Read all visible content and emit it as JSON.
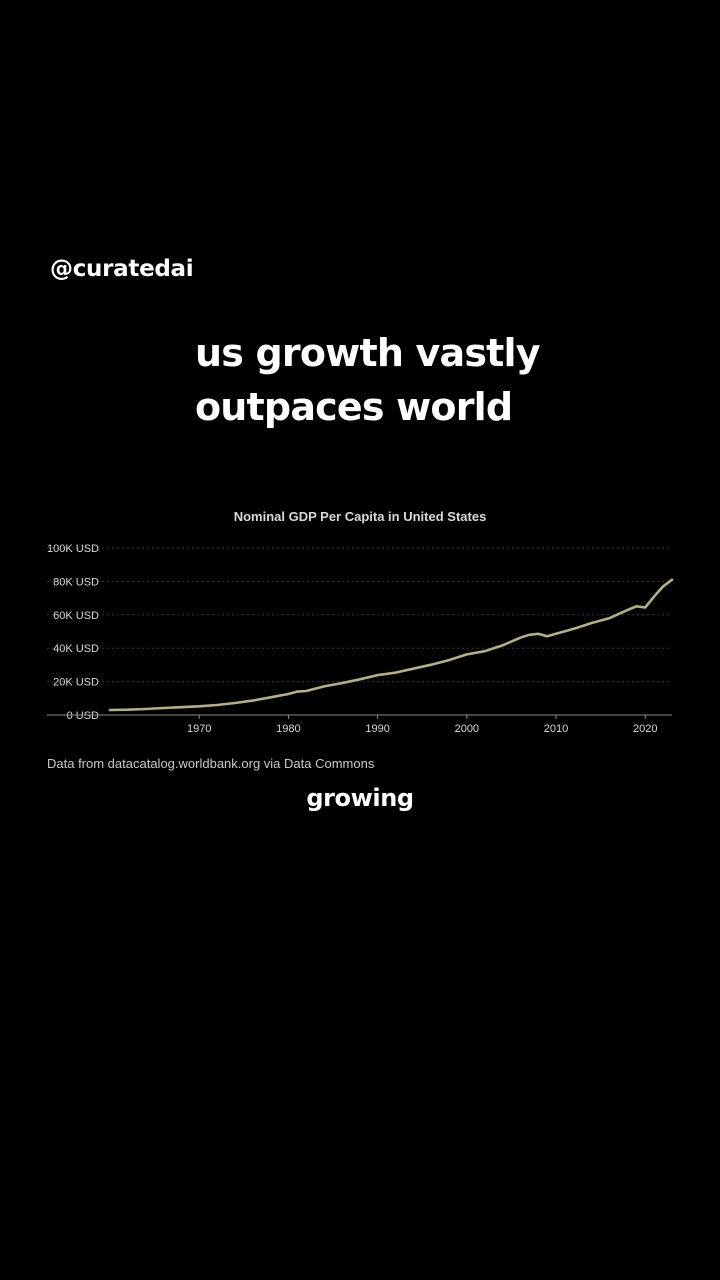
{
  "handle": "@curatedai",
  "headline": {
    "line1": "us growth vastly",
    "line2": "outpaces world"
  },
  "source_note": "Data from datacatalog.worldbank.org via Data Commons",
  "caption": "growing",
  "colors": {
    "background": "#000000",
    "line": "#b3b088",
    "text": "#ffffff",
    "axis_text": "#d8d8d8"
  },
  "chart_data": {
    "type": "line",
    "title": "Nominal GDP Per Capita in United States",
    "xlabel": "",
    "ylabel": "",
    "xlim": [
      1960,
      2023
    ],
    "ylim": [
      0,
      100000
    ],
    "x_ticks": [
      1970,
      1980,
      1990,
      2000,
      2010,
      2020
    ],
    "y_ticks": [
      0,
      20000,
      40000,
      60000,
      80000,
      100000
    ],
    "y_tick_labels": [
      "0 USD",
      "20K USD",
      "40K USD",
      "60K USD",
      "80K USD",
      "100K USD"
    ],
    "grid": "horizontal-dotted",
    "series": [
      {
        "name": "",
        "x": [
          1960,
          1962,
          1964,
          1966,
          1968,
          1970,
          1972,
          1974,
          1976,
          1978,
          1980,
          1981,
          1982,
          1984,
          1986,
          1988,
          1990,
          1992,
          1994,
          1996,
          1998,
          2000,
          2002,
          2004,
          2006,
          2007,
          2008,
          2009,
          2010,
          2012,
          2014,
          2016,
          2018,
          2019,
          2020,
          2021,
          2022,
          2023
        ],
        "y": [
          3000,
          3200,
          3600,
          4200,
          4700,
          5200,
          6000,
          7200,
          8600,
          10600,
          12600,
          14000,
          14400,
          17100,
          19100,
          21400,
          23900,
          25400,
          27700,
          30100,
          32900,
          36300,
          38200,
          41700,
          46300,
          48000,
          48600,
          47200,
          48700,
          51700,
          55100,
          58000,
          62800,
          65100,
          64400,
          71000,
          77000,
          81000
        ]
      }
    ]
  }
}
